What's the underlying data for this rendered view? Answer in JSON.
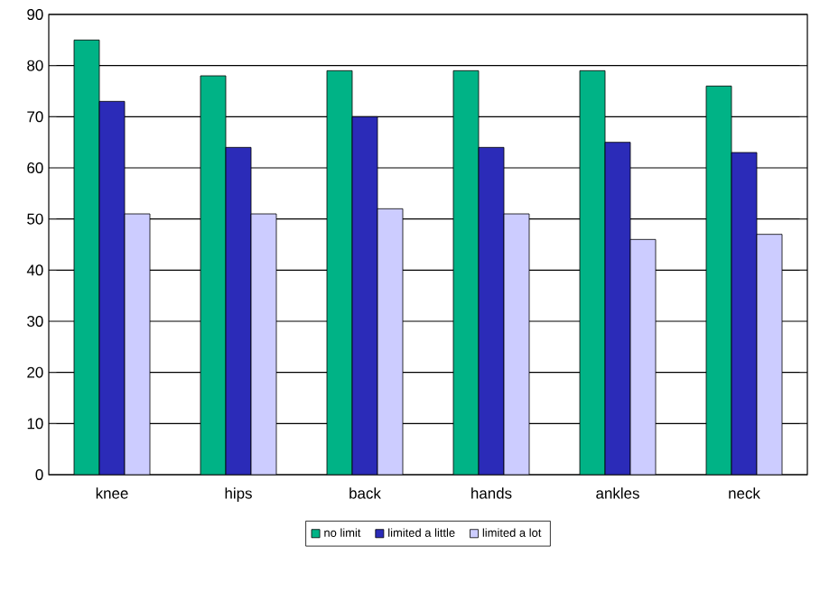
{
  "chart_data": {
    "type": "bar",
    "categories": [
      "knee",
      "hips",
      "back",
      "hands",
      "ankles",
      "neck"
    ],
    "series": [
      {
        "name": "no limit",
        "color": "#00b386",
        "values": [
          85,
          78,
          79,
          79,
          79,
          76
        ]
      },
      {
        "name": "limited a little",
        "color": "#2b2bb8",
        "values": [
          73,
          64,
          70,
          64,
          65,
          63
        ]
      },
      {
        "name": "limited a lot",
        "color": "#ccccff",
        "values": [
          51,
          51,
          52,
          51,
          46,
          47
        ]
      }
    ],
    "ylim": [
      0,
      90
    ],
    "yticks": [
      0,
      10,
      20,
      30,
      40,
      50,
      60,
      70,
      80,
      90
    ],
    "grid": "y",
    "legend": "bottom"
  }
}
